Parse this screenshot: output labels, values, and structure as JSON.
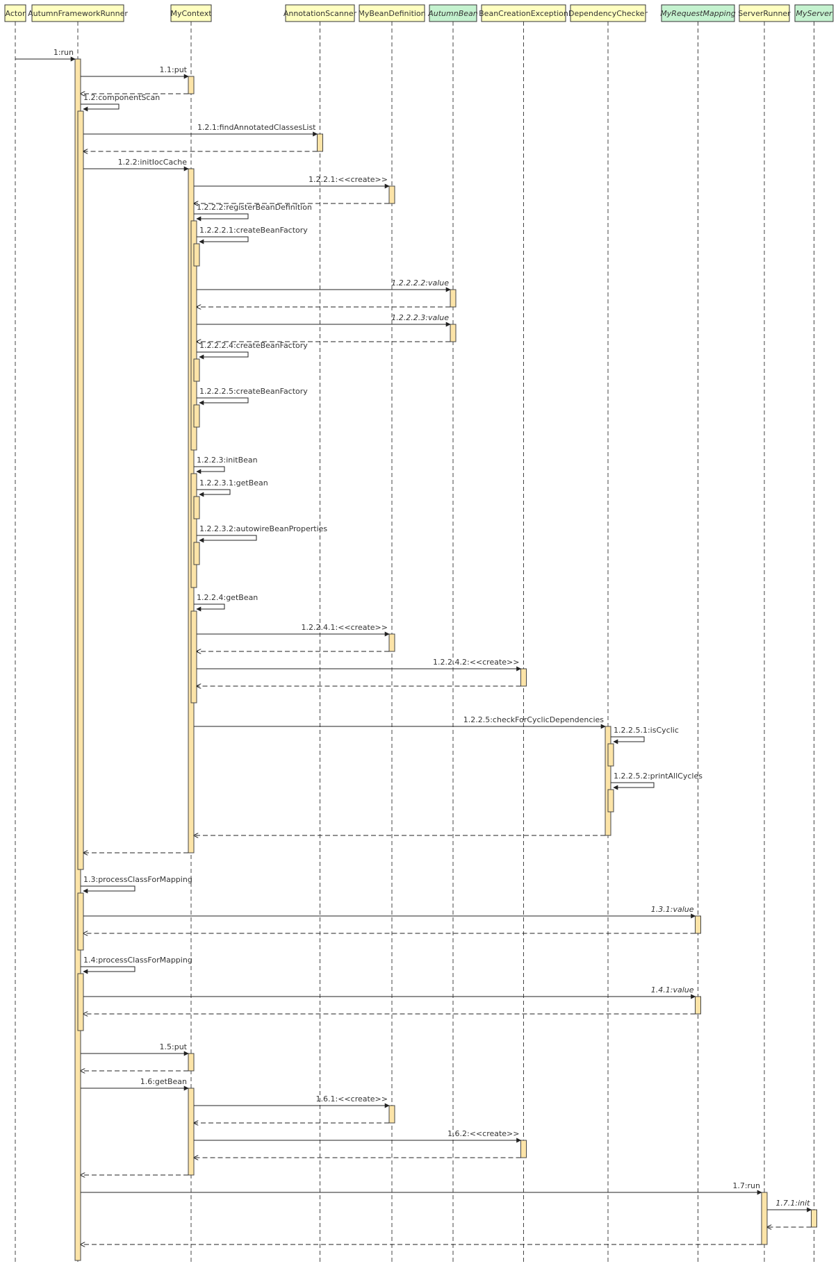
{
  "colors": {
    "participant_fill": "#ffffc0",
    "interface_fill": "#c4f2cf",
    "activation_fill": "#fce4a8",
    "line": "#333333"
  },
  "participants": [
    {
      "id": "actor",
      "label": "Actor",
      "kind": "class"
    },
    {
      "id": "runner",
      "label": "AutumnFrameworkRunner",
      "kind": "class"
    },
    {
      "id": "ctx",
      "label": "MyContext",
      "kind": "class"
    },
    {
      "id": "scanner",
      "label": "AnnotationScanner",
      "kind": "class"
    },
    {
      "id": "beandef",
      "label": "MyBeanDefinition",
      "kind": "class"
    },
    {
      "id": "bean",
      "label": "AutumnBean",
      "kind": "interface"
    },
    {
      "id": "bce",
      "label": "BeanCreationException",
      "kind": "class"
    },
    {
      "id": "dep",
      "label": "DependencyChecker",
      "kind": "class"
    },
    {
      "id": "mapping",
      "label": "MyRequestMapping",
      "kind": "interface"
    },
    {
      "id": "srvrunner",
      "label": "ServerRunner",
      "kind": "class"
    },
    {
      "id": "server",
      "label": "MyServer",
      "kind": "interface"
    }
  ],
  "messages": [
    {
      "label": "1:run",
      "from": "actor",
      "to": "runner",
      "kind": "call"
    },
    {
      "label": "1.1:put",
      "from": "runner",
      "to": "ctx",
      "kind": "call"
    },
    {
      "label": "",
      "from": "ctx",
      "to": "runner",
      "kind": "return"
    },
    {
      "label": "1.2:componentScan",
      "from": "runner",
      "to": "runner",
      "kind": "self"
    },
    {
      "label": "1.2.1:findAnnotatedClassesList",
      "from": "runner",
      "to": "scanner",
      "kind": "call"
    },
    {
      "label": "",
      "from": "scanner",
      "to": "runner",
      "kind": "return"
    },
    {
      "label": "1.2.2:initIocCache",
      "from": "runner",
      "to": "ctx",
      "kind": "call"
    },
    {
      "label": "1.2.2.1:<<create>>",
      "from": "ctx",
      "to": "beandef",
      "kind": "call"
    },
    {
      "label": "",
      "from": "beandef",
      "to": "ctx",
      "kind": "return"
    },
    {
      "label": "1.2.2.2:registerBeanDefinition",
      "from": "ctx",
      "to": "ctx",
      "kind": "self"
    },
    {
      "label": "1.2.2.2.1:createBeanFactory",
      "from": "ctx",
      "to": "ctx",
      "kind": "self"
    },
    {
      "label": "1.2.2.2.2:value",
      "from": "ctx",
      "to": "bean",
      "kind": "call",
      "italic": true
    },
    {
      "label": "",
      "from": "bean",
      "to": "ctx",
      "kind": "return"
    },
    {
      "label": "1.2.2.2.3:value",
      "from": "ctx",
      "to": "bean",
      "kind": "call",
      "italic": true
    },
    {
      "label": "",
      "from": "bean",
      "to": "ctx",
      "kind": "return"
    },
    {
      "label": "1.2.2.2.4:createBeanFactory",
      "from": "ctx",
      "to": "ctx",
      "kind": "self"
    },
    {
      "label": "1.2.2.2.5:createBeanFactory",
      "from": "ctx",
      "to": "ctx",
      "kind": "self"
    },
    {
      "label": "1.2.2.3:initBean",
      "from": "ctx",
      "to": "ctx",
      "kind": "self"
    },
    {
      "label": "1.2.2.3.1:getBean",
      "from": "ctx",
      "to": "ctx",
      "kind": "self"
    },
    {
      "label": "1.2.2.3.2:autowireBeanProperties",
      "from": "ctx",
      "to": "ctx",
      "kind": "self"
    },
    {
      "label": "1.2.2.4:getBean",
      "from": "ctx",
      "to": "ctx",
      "kind": "self"
    },
    {
      "label": "1.2.2.4.1:<<create>>",
      "from": "ctx",
      "to": "beandef",
      "kind": "call"
    },
    {
      "label": "",
      "from": "beandef",
      "to": "ctx",
      "kind": "return"
    },
    {
      "label": "1.2.2.4.2:<<create>>",
      "from": "ctx",
      "to": "bce",
      "kind": "call"
    },
    {
      "label": "",
      "from": "bce",
      "to": "ctx",
      "kind": "return"
    },
    {
      "label": "1.2.2.5:checkForCyclicDependencies",
      "from": "ctx",
      "to": "dep",
      "kind": "call"
    },
    {
      "label": "1.2.2.5.1:isCyclic",
      "from": "dep",
      "to": "dep",
      "kind": "self"
    },
    {
      "label": "1.2.2.5.2:printAllCycles",
      "from": "dep",
      "to": "dep",
      "kind": "self"
    },
    {
      "label": "",
      "from": "dep",
      "to": "ctx",
      "kind": "return"
    },
    {
      "label": "",
      "from": "ctx",
      "to": "runner",
      "kind": "return"
    },
    {
      "label": "1.3:processClassForMapping",
      "from": "runner",
      "to": "runner",
      "kind": "self"
    },
    {
      "label": "1.3.1:value",
      "from": "runner",
      "to": "mapping",
      "kind": "call",
      "italic": true
    },
    {
      "label": "",
      "from": "mapping",
      "to": "runner",
      "kind": "return"
    },
    {
      "label": "1.4:processClassForMapping",
      "from": "runner",
      "to": "runner",
      "kind": "self"
    },
    {
      "label": "1.4.1:value",
      "from": "runner",
      "to": "mapping",
      "kind": "call",
      "italic": true
    },
    {
      "label": "",
      "from": "mapping",
      "to": "runner",
      "kind": "return"
    },
    {
      "label": "1.5:put",
      "from": "runner",
      "to": "ctx",
      "kind": "call"
    },
    {
      "label": "",
      "from": "ctx",
      "to": "runner",
      "kind": "return"
    },
    {
      "label": "1.6:getBean",
      "from": "runner",
      "to": "ctx",
      "kind": "call"
    },
    {
      "label": "1.6.1:<<create>>",
      "from": "ctx",
      "to": "beandef",
      "kind": "call"
    },
    {
      "label": "",
      "from": "beandef",
      "to": "ctx",
      "kind": "return"
    },
    {
      "label": "1.6.2:<<create>>",
      "from": "ctx",
      "to": "bce",
      "kind": "call"
    },
    {
      "label": "",
      "from": "bce",
      "to": "ctx",
      "kind": "return"
    },
    {
      "label": "",
      "from": "ctx",
      "to": "runner",
      "kind": "return"
    },
    {
      "label": "1.7:run",
      "from": "runner",
      "to": "srvrunner",
      "kind": "call"
    },
    {
      "label": "1.7.1:init",
      "from": "srvrunner",
      "to": "server",
      "kind": "call",
      "italic": true
    },
    {
      "label": "",
      "from": "server",
      "to": "srvrunner",
      "kind": "return"
    },
    {
      "label": "",
      "from": "srvrunner",
      "to": "runner",
      "kind": "return"
    }
  ]
}
